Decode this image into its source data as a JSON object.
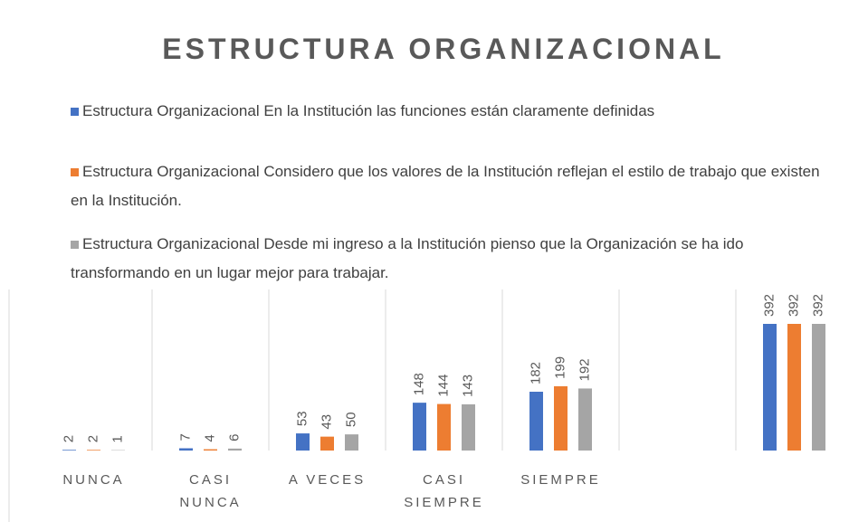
{
  "chart_data": {
    "type": "bar",
    "title": "ESTRUCTURA ORGANIZACIONAL",
    "categories": [
      "NUNCA",
      "CASI NUNCA",
      "A VECES",
      "CASI SIEMPRE",
      "SIEMPRE",
      null,
      null
    ],
    "series": [
      {
        "name": "Estructura Organizacional  En la Institución las funciones están claramente definidas",
        "color": "#4472c4",
        "values": [
          2,
          7,
          53,
          148,
          182,
          null,
          392
        ]
      },
      {
        "name": "Estructura Organizacional Considero que los valores de la Institución reflejan el estilo de trabajo que existen en la Institución.",
        "color": "#ed7d31",
        "values": [
          2,
          4,
          43,
          144,
          199,
          null,
          392
        ]
      },
      {
        "name": "Estructura Organizacional Desde mi ingreso a la Institución pienso que la Organización se ha ido transformando en un lugar mejor para trabajar.",
        "color": "#a5a5a5",
        "values": [
          1,
          6,
          50,
          143,
          192,
          null,
          392
        ]
      }
    ]
  }
}
